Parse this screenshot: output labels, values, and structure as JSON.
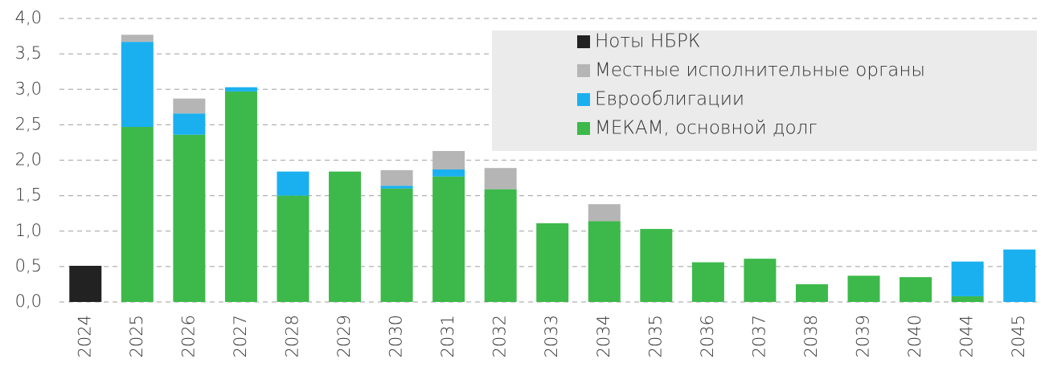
{
  "chart_data": {
    "type": "stacked-bar",
    "categories": [
      "2024",
      "2025",
      "2026",
      "2027",
      "2028",
      "2029",
      "2030",
      "2031",
      "2032",
      "2033",
      "2034",
      "2035",
      "2036",
      "2037",
      "2038",
      "2039",
      "2040",
      "2044",
      "2045"
    ],
    "series": [
      {
        "name": "МЕКАМ, основной долг",
        "color": "#3cb94a",
        "values": [
          0,
          2.47,
          2.36,
          2.97,
          1.5,
          1.84,
          1.6,
          1.77,
          1.59,
          1.11,
          1.14,
          1.03,
          0.56,
          0.61,
          0.25,
          0.37,
          0.35,
          0.08,
          0
        ]
      },
      {
        "name": "Еврооблигации",
        "color": "#1ab0f0",
        "values": [
          0,
          1.2,
          0.3,
          0.06,
          0.34,
          0,
          0.04,
          0.1,
          0,
          0,
          0,
          0,
          0,
          0,
          0,
          0,
          0,
          0.49,
          0.74
        ]
      },
      {
        "name": "Местные исполнительные органы",
        "color": "#b5b5b5",
        "values": [
          0,
          0.1,
          0.21,
          0,
          0,
          0,
          0.22,
          0.26,
          0.3,
          0,
          0.24,
          0,
          0,
          0,
          0,
          0,
          0,
          0,
          0
        ]
      },
      {
        "name": "Ноты НБРК",
        "color": "#222222",
        "values": [
          0.51,
          0,
          0,
          0,
          0,
          0,
          0,
          0,
          0,
          0,
          0,
          0,
          0,
          0,
          0,
          0,
          0,
          0,
          0
        ]
      }
    ],
    "ylim": [
      0,
      4
    ],
    "yticks": [
      {
        "value": 0,
        "label": "0,0"
      },
      {
        "value": 0.5,
        "label": "0,5"
      },
      {
        "value": 1,
        "label": "1,0"
      },
      {
        "value": 1.5,
        "label": "1,5"
      },
      {
        "value": 2,
        "label": "2,0"
      },
      {
        "value": 2.5,
        "label": "2,5"
      },
      {
        "value": 3,
        "label": "3,0"
      },
      {
        "value": 3.5,
        "label": "3,5"
      },
      {
        "value": 4,
        "label": "4,0"
      }
    ],
    "grid": true
  }
}
